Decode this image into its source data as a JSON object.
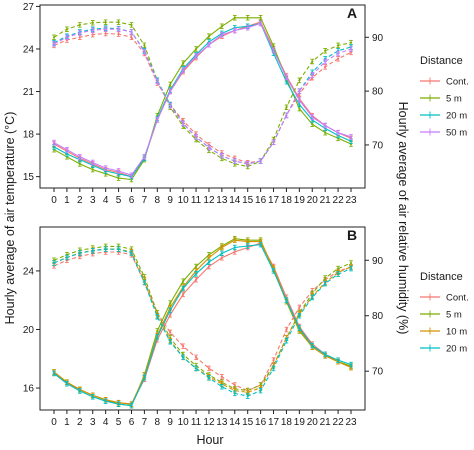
{
  "figure": {
    "y_left_title": "Hourly average of air temperature (°C)",
    "y_right_title": "Hourly average of air relative humidity (%)",
    "x_title": "Hour",
    "legend_title": "Distance"
  },
  "chart_data": [
    {
      "panel": "A",
      "type": "line",
      "x": [
        0,
        1,
        2,
        3,
        4,
        5,
        6,
        7,
        8,
        9,
        10,
        11,
        12,
        13,
        14,
        15,
        16,
        17,
        18,
        19,
        20,
        21,
        22,
        23
      ],
      "xlabel": "Hour",
      "ylabel": "Hourly average of air temperature (°C)",
      "ylim": [
        14.2,
        27.1
      ],
      "yticks": [
        15,
        18,
        21,
        24,
        27
      ],
      "y2label": "Hourly average of air relative humidity (%)",
      "y2lim": [
        62,
        96
      ],
      "y2ticks": [
        70,
        80,
        90
      ],
      "grid": false,
      "legend": "right",
      "series": [
        {
          "name": "Cont.",
          "color": "#F8766D",
          "variable": "temperature",
          "axis": "left",
          "style": "solid",
          "values": [
            17.3,
            16.8,
            16.3,
            15.9,
            15.5,
            15.3,
            15.0,
            16.3,
            19.0,
            21.0,
            22.4,
            23.4,
            24.3,
            24.9,
            25.3,
            25.6,
            25.9,
            24.0,
            22.1,
            20.5,
            19.3,
            18.6,
            18.1,
            17.7
          ]
        },
        {
          "name": "5 m",
          "color": "#7CAE00",
          "variable": "temperature",
          "axis": "left",
          "style": "solid",
          "values": [
            16.9,
            16.4,
            15.9,
            15.5,
            15.2,
            14.9,
            14.8,
            16.2,
            19.3,
            21.5,
            23.0,
            24.0,
            24.9,
            25.6,
            26.2,
            26.2,
            26.2,
            24.2,
            21.9,
            19.8,
            18.7,
            18.1,
            17.7,
            17.3
          ]
        },
        {
          "name": "20 m",
          "color": "#00BFC4",
          "variable": "temperature",
          "axis": "left",
          "style": "solid",
          "values": [
            17.1,
            16.6,
            16.2,
            15.8,
            15.4,
            15.2,
            15.0,
            16.3,
            19.1,
            21.1,
            22.6,
            23.6,
            24.5,
            25.1,
            25.5,
            25.6,
            25.8,
            23.7,
            21.7,
            20.1,
            19.0,
            18.4,
            17.9,
            17.5
          ]
        },
        {
          "name": "50 m",
          "color": "#C77CFF",
          "variable": "temperature",
          "axis": "left",
          "style": "solid",
          "values": [
            17.4,
            16.9,
            16.4,
            16.0,
            15.6,
            15.4,
            15.1,
            16.4,
            19.0,
            21.0,
            22.5,
            23.5,
            24.3,
            25.0,
            25.3,
            25.5,
            25.8,
            23.9,
            22.0,
            20.4,
            19.2,
            18.6,
            18.1,
            17.8
          ]
        },
        {
          "name": "Cont.",
          "color": "#F8766D",
          "variable": "relative humidity",
          "axis": "right",
          "style": "dashed",
          "values": [
            88.5,
            89.5,
            90.0,
            90.5,
            90.7,
            90.6,
            90.0,
            87.0,
            81.5,
            77.5,
            74.5,
            72.0,
            70.0,
            68.5,
            67.5,
            66.7,
            67.0,
            70.5,
            75.5,
            79.5,
            82.5,
            84.5,
            86.0,
            87.2
          ]
        },
        {
          "name": "5 m",
          "color": "#7CAE00",
          "variable": "relative humidity",
          "axis": "right",
          "style": "dashed",
          "values": [
            90.0,
            91.5,
            92.3,
            92.7,
            92.8,
            92.8,
            92.3,
            88.5,
            82.0,
            77.0,
            73.5,
            71.0,
            69.0,
            67.5,
            66.5,
            66.0,
            67.0,
            71.0,
            77.0,
            82.0,
            85.5,
            87.5,
            88.5,
            89.0
          ]
        },
        {
          "name": "20 m",
          "color": "#00BFC4",
          "variable": "relative humidity",
          "axis": "right",
          "style": "dashed",
          "values": [
            89.0,
            90.2,
            91.0,
            91.5,
            91.7,
            91.6,
            91.0,
            87.5,
            82.0,
            77.5,
            74.0,
            71.5,
            69.5,
            68.0,
            67.0,
            66.5,
            67.0,
            70.5,
            75.5,
            80.0,
            83.5,
            86.0,
            87.5,
            88.2
          ]
        },
        {
          "name": "50 m",
          "color": "#C77CFF",
          "variable": "relative humidity",
          "axis": "right",
          "style": "dashed",
          "values": [
            88.8,
            90.0,
            90.8,
            91.3,
            91.5,
            91.5,
            91.0,
            87.3,
            81.8,
            77.3,
            74.0,
            71.5,
            69.5,
            68.0,
            67.0,
            66.5,
            67.0,
            70.5,
            75.5,
            80.0,
            83.0,
            85.5,
            87.0,
            87.8
          ]
        }
      ]
    },
    {
      "panel": "B",
      "type": "line",
      "x": [
        0,
        1,
        2,
        3,
        4,
        5,
        6,
        7,
        8,
        9,
        10,
        11,
        12,
        13,
        14,
        15,
        16,
        17,
        18,
        19,
        20,
        21,
        22,
        23
      ],
      "xlabel": "Hour",
      "ylabel": "Hourly average of air temperature (°C)",
      "ylim": [
        14.5,
        27.0
      ],
      "yticks": [
        16,
        20,
        24
      ],
      "y2label": "Hourly average of air relative humidity (%)",
      "y2lim": [
        63,
        96
      ],
      "y2ticks": [
        70,
        80,
        90
      ],
      "grid": false,
      "legend": "right",
      "series": [
        {
          "name": "Cont.",
          "color": "#F8766D",
          "variable": "temperature",
          "axis": "left",
          "style": "solid",
          "values": [
            17.0,
            16.3,
            15.9,
            15.5,
            15.2,
            15.0,
            14.9,
            16.6,
            19.3,
            21.0,
            22.4,
            23.4,
            24.3,
            24.9,
            25.3,
            25.6,
            25.9,
            24.3,
            22.2,
            20.2,
            19.0,
            18.3,
            17.8,
            17.4
          ]
        },
        {
          "name": "5 m",
          "color": "#7CAE00",
          "variable": "temperature",
          "axis": "left",
          "style": "solid",
          "values": [
            17.1,
            16.4,
            15.9,
            15.5,
            15.2,
            14.9,
            14.8,
            16.9,
            19.9,
            21.8,
            23.3,
            24.3,
            25.1,
            25.7,
            26.2,
            26.1,
            26.1,
            24.1,
            21.9,
            19.9,
            18.8,
            18.2,
            17.8,
            17.5
          ]
        },
        {
          "name": "10 m",
          "color": "#D39200",
          "variable": "temperature",
          "axis": "left",
          "style": "solid",
          "values": [
            17.1,
            16.4,
            15.9,
            15.5,
            15.2,
            15.0,
            14.9,
            16.8,
            19.6,
            21.5,
            22.9,
            24.0,
            24.9,
            25.6,
            26.1,
            26.0,
            26.0,
            24.2,
            22.0,
            20.0,
            18.8,
            18.2,
            17.8,
            17.4
          ]
        },
        {
          "name": "20 m",
          "color": "#00BFC4",
          "variable": "temperature",
          "axis": "left",
          "style": "solid",
          "values": [
            17.0,
            16.3,
            15.8,
            15.4,
            15.1,
            14.9,
            14.8,
            16.7,
            19.5,
            21.3,
            22.8,
            23.8,
            24.6,
            25.2,
            25.6,
            25.7,
            25.8,
            24.0,
            22.0,
            20.1,
            18.9,
            18.3,
            17.9,
            17.6
          ]
        },
        {
          "name": "Cont.",
          "color": "#F8766D",
          "variable": "relative humidity",
          "axis": "right",
          "style": "dashed",
          "values": [
            89.0,
            90.0,
            90.7,
            91.2,
            91.5,
            91.5,
            91.0,
            86.0,
            80.5,
            77.0,
            74.5,
            72.5,
            70.5,
            69.0,
            67.5,
            66.5,
            67.5,
            72.0,
            77.5,
            81.5,
            84.5,
            86.5,
            88.0,
            88.8
          ]
        },
        {
          "name": "5 m",
          "color": "#7CAE00",
          "variable": "relative humidity",
          "axis": "right",
          "style": "dashed",
          "values": [
            90.0,
            91.0,
            91.8,
            92.2,
            92.5,
            92.5,
            92.0,
            87.0,
            80.5,
            76.0,
            73.0,
            71.0,
            69.3,
            68.0,
            66.8,
            66.5,
            67.5,
            71.0,
            76.0,
            80.5,
            84.0,
            86.8,
            88.5,
            89.5
          ]
        },
        {
          "name": "10 m",
          "color": "#D39200",
          "variable": "relative humidity",
          "axis": "right",
          "style": "dashed",
          "values": [
            89.5,
            90.5,
            91.3,
            91.8,
            92.0,
            92.0,
            91.5,
            86.5,
            80.0,
            75.5,
            72.5,
            70.5,
            69.0,
            67.7,
            66.5,
            66.2,
            67.0,
            71.0,
            76.0,
            80.3,
            83.5,
            86.0,
            87.8,
            88.8
          ]
        },
        {
          "name": "20 m",
          "color": "#00BFC4",
          "variable": "relative humidity",
          "axis": "right",
          "style": "dashed",
          "values": [
            89.5,
            90.5,
            91.3,
            91.7,
            92.0,
            92.0,
            91.3,
            86.0,
            79.8,
            75.3,
            72.5,
            70.5,
            68.8,
            67.2,
            66.0,
            65.5,
            66.5,
            70.5,
            75.5,
            80.0,
            83.3,
            85.8,
            87.5,
            88.5
          ]
        }
      ]
    }
  ]
}
